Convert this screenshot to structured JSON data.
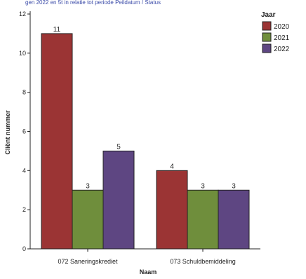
{
  "header": {
    "caption": "gen 2022 en 5t in relatie tot periode Peildatum / Status"
  },
  "chart_data": {
    "type": "bar",
    "categories": [
      "072 Saneringskrediet",
      "073 Schuldbemiddeling"
    ],
    "series": [
      {
        "name": "2020",
        "values": [
          11,
          4
        ],
        "color": "#9b3434"
      },
      {
        "name": "2021",
        "values": [
          3,
          3
        ],
        "color": "#6f8e3c"
      },
      {
        "name": "2022",
        "values": [
          5,
          3
        ],
        "color": "#5e4682"
      }
    ],
    "xlabel": "Naam",
    "ylabel": "Cliënt nummer",
    "ylim": [
      0,
      12
    ],
    "yticks": [
      0,
      2,
      4,
      6,
      8,
      10,
      12
    ],
    "legend_title": "Jaar",
    "legend_position": "right",
    "grid": false
  }
}
